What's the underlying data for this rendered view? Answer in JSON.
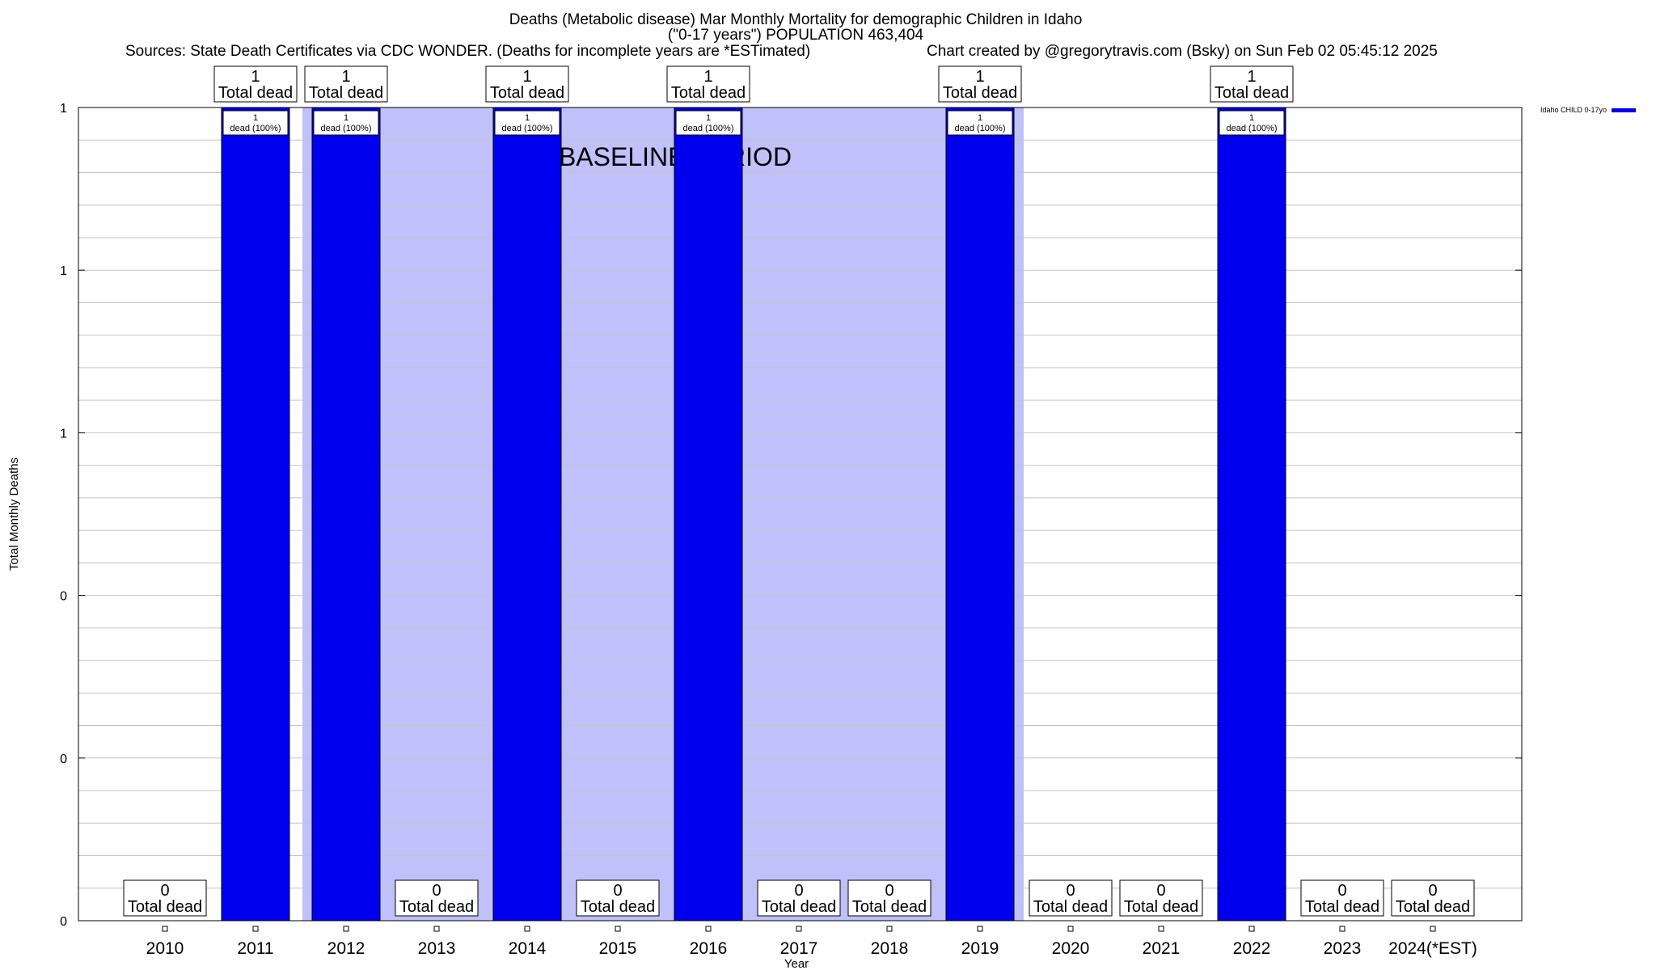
{
  "title": {
    "line1": "Deaths (Metabolic disease) Mar Monthly Mortality for demographic Children in Idaho",
    "line2": "(\"0-17 years\") POPULATION 463,404"
  },
  "sources": "Sources: State Death Certificates via CDC WONDER. (Deaths for incomplete years are *ESTimated)",
  "credit": "Chart created by @gregorytravis.com (Bsky) on Sun Feb 02 05:45:12 2025",
  "legend": {
    "label": "Idaho CHILD 0-17yo",
    "color": "#0000ee"
  },
  "chart_data": {
    "type": "bar",
    "title": "Deaths (Metabolic disease) Mar Monthly Mortality for demographic Children in Idaho",
    "xlabel": "Year",
    "ylabel": "Total Monthly Deaths",
    "categories": [
      "2010",
      "2011",
      "2012",
      "2013",
      "2014",
      "2015",
      "2016",
      "2017",
      "2018",
      "2019",
      "2020",
      "2021",
      "2022",
      "2023",
      "2024(*EST)"
    ],
    "series": [
      {
        "name": "Idaho CHILD 0-17yo",
        "color": "#0000ee",
        "values": [
          0,
          1,
          1,
          0,
          1,
          0,
          1,
          0,
          0,
          1,
          0,
          0,
          1,
          0,
          0
        ]
      }
    ],
    "ylim": [
      0,
      1
    ],
    "ytick_values": [
      0,
      0.2,
      0.4,
      0.6,
      0.8,
      1.0
    ],
    "ytick_labels": [
      "0",
      "0",
      "0",
      "1",
      "1",
      "1"
    ],
    "grid": true,
    "total_label_suffix": "Total dead",
    "bar_label_suffix": "dead (100%)",
    "baseline_period": {
      "label": "BASELINE PERIOD",
      "start": "2012",
      "end": "2019",
      "color": "#c0c0fa"
    },
    "legend_position": "top-right"
  }
}
